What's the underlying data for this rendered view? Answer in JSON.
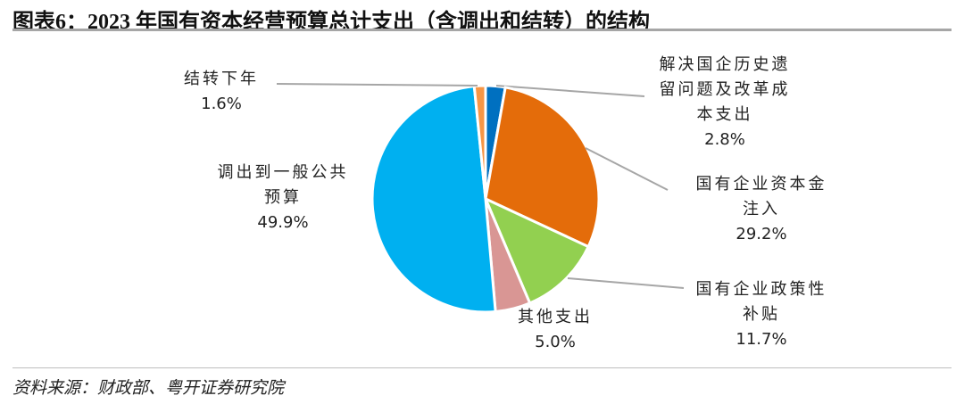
{
  "title": "图表6：2023 年国有资本经营预算总计支出（含调出和结转）的结构",
  "source": "资料来源：财政部、粤开证券研究院",
  "chart_data": {
    "type": "pie",
    "start": "12 o'clock",
    "direction": "clockwise",
    "slices": [
      {
        "label_lines": [
          "解决国企历史遗",
          "留问题及改革成",
          "本支出"
        ],
        "value": 2.8,
        "value_label": "2.8%",
        "color": "#0070c0"
      },
      {
        "label_lines": [
          "国有企业资本金",
          "注入"
        ],
        "value": 29.2,
        "value_label": "29.2%",
        "color": "#e46c0a"
      },
      {
        "label_lines": [
          "国有企业政策性",
          "补贴"
        ],
        "value": 11.7,
        "value_label": "11.7%",
        "color": "#92d050"
      },
      {
        "label_lines": [
          "其他支出"
        ],
        "value": 5.0,
        "value_label": "5.0%",
        "color": "#d99694"
      },
      {
        "label_lines": [
          "调出到一般公共",
          "预算"
        ],
        "value": 49.9,
        "value_label": "49.9%",
        "color": "#00b0f0"
      },
      {
        "label_lines": [
          "结转下年"
        ],
        "value": 1.6,
        "value_label": "1.6%",
        "color": "#f79646"
      }
    ]
  }
}
